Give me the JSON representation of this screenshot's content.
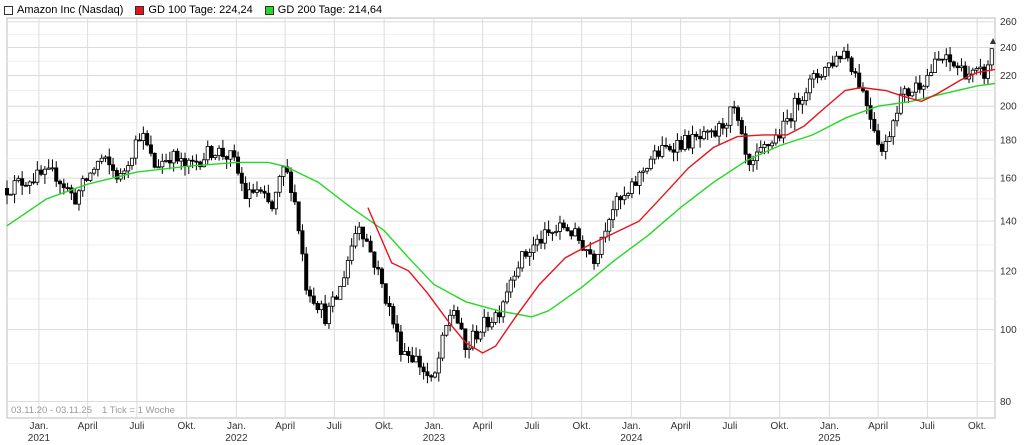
{
  "legend": {
    "main": "Amazon Inc (Nasdaq)",
    "gd100": "GD 100 Tage: 224,24",
    "gd200": "GD 200 Tage: 214,64",
    "main_color": "#ffffff",
    "gd100_color": "#e8121b",
    "gd200_color": "#25d825"
  },
  "footer": {
    "range": "03.11.20 - 03.11.25",
    "tick": "1 Tick = 1 Woche"
  },
  "chart_data": {
    "type": "candlestick",
    "title": "Amazon Inc (Nasdaq)",
    "y_scale": "log",
    "ylim": [
      76,
      263
    ],
    "y_ticks": [
      80,
      100,
      120,
      140,
      160,
      180,
      200,
      220,
      240,
      260
    ],
    "grid": true,
    "legend_position": "top-left",
    "x_ticks": [
      {
        "label": "Jan.",
        "year": "2021",
        "date": "2021-01"
      },
      {
        "label": "April",
        "year": "",
        "date": "2021-04"
      },
      {
        "label": "Juli",
        "year": "",
        "date": "2021-07"
      },
      {
        "label": "Okt.",
        "year": "",
        "date": "2021-10"
      },
      {
        "label": "Jan.",
        "year": "2022",
        "date": "2022-01"
      },
      {
        "label": "April",
        "year": "",
        "date": "2022-04"
      },
      {
        "label": "Juli",
        "year": "",
        "date": "2022-07"
      },
      {
        "label": "Okt.",
        "year": "",
        "date": "2022-10"
      },
      {
        "label": "Jan.",
        "year": "2023",
        "date": "2023-01"
      },
      {
        "label": "April",
        "year": "",
        "date": "2023-04"
      },
      {
        "label": "Juli",
        "year": "",
        "date": "2023-07"
      },
      {
        "label": "Okt.",
        "year": "",
        "date": "2023-10"
      },
      {
        "label": "Jan.",
        "year": "2024",
        "date": "2024-01"
      },
      {
        "label": "April",
        "year": "",
        "date": "2024-04"
      },
      {
        "label": "Juli",
        "year": "",
        "date": "2024-07"
      },
      {
        "label": "Okt.",
        "year": "",
        "date": "2024-10"
      },
      {
        "label": "Jan.",
        "year": "2025",
        "date": "2025-01"
      },
      {
        "label": "April",
        "year": "",
        "date": "2025-04"
      },
      {
        "label": "Juli",
        "year": "",
        "date": "2025-07"
      },
      {
        "label": "Okt.",
        "year": "",
        "date": "2025-10"
      }
    ],
    "price_path": [
      [
        "2020-11-03",
        155
      ],
      [
        "2020-12-15",
        160
      ],
      [
        "2021-02-01",
        162
      ],
      [
        "2021-03-08",
        150
      ],
      [
        "2021-04-25",
        170
      ],
      [
        "2021-06-01",
        160
      ],
      [
        "2021-07-08",
        185
      ],
      [
        "2021-08-02",
        166
      ],
      [
        "2021-09-01",
        172
      ],
      [
        "2021-10-01",
        165
      ],
      [
        "2021-11-20",
        175
      ],
      [
        "2021-12-25",
        170
      ],
      [
        "2022-01-20",
        150
      ],
      [
        "2022-02-05",
        155
      ],
      [
        "2022-03-08",
        145
      ],
      [
        "2022-03-30",
        165
      ],
      [
        "2022-04-15",
        155
      ],
      [
        "2022-05-10",
        115
      ],
      [
        "2022-06-15",
        104
      ],
      [
        "2022-07-10",
        112
      ],
      [
        "2022-08-15",
        140
      ],
      [
        "2022-09-05",
        128
      ],
      [
        "2022-09-30",
        113
      ],
      [
        "2022-10-30",
        95
      ],
      [
        "2022-12-01",
        91
      ],
      [
        "2022-12-30",
        84
      ],
      [
        "2023-01-20",
        98
      ],
      [
        "2023-02-05",
        108
      ],
      [
        "2023-03-01",
        93
      ],
      [
        "2023-03-15",
        98
      ],
      [
        "2023-05-01",
        106
      ],
      [
        "2023-06-01",
        122
      ],
      [
        "2023-07-15",
        132
      ],
      [
        "2023-09-01",
        138
      ],
      [
        "2023-10-25",
        125
      ],
      [
        "2023-11-25",
        146
      ],
      [
        "2023-12-25",
        151
      ],
      [
        "2024-02-05",
        170
      ],
      [
        "2024-03-20",
        178
      ],
      [
        "2024-04-30",
        180
      ],
      [
        "2024-06-01",
        182
      ],
      [
        "2024-07-08",
        198
      ],
      [
        "2024-08-05",
        163
      ],
      [
        "2024-09-01",
        175
      ],
      [
        "2024-10-05",
        185
      ],
      [
        "2024-11-10",
        208
      ],
      [
        "2024-12-20",
        224
      ],
      [
        "2025-01-30",
        238
      ],
      [
        "2025-03-01",
        212
      ],
      [
        "2025-04-10",
        172
      ],
      [
        "2025-05-10",
        205
      ],
      [
        "2025-06-01",
        210
      ],
      [
        "2025-07-01",
        220
      ],
      [
        "2025-07-25",
        232
      ],
      [
        "2025-08-25",
        226
      ],
      [
        "2025-09-25",
        220
      ],
      [
        "2025-10-20",
        222
      ],
      [
        "2025-11-03",
        254
      ]
    ],
    "series": [
      {
        "name": "GD 100 Tage",
        "color": "#e8121b",
        "points": [
          [
            "2022-09-01",
            146
          ],
          [
            "2022-10-15",
            123
          ],
          [
            "2022-11-15",
            120
          ],
          [
            "2022-12-20",
            112
          ],
          [
            "2023-01-30",
            102
          ],
          [
            "2023-03-01",
            96
          ],
          [
            "2023-04-01",
            93
          ],
          [
            "2023-04-25",
            95
          ],
          [
            "2023-06-01",
            104
          ],
          [
            "2023-07-15",
            115
          ],
          [
            "2023-09-01",
            125
          ],
          [
            "2023-10-15",
            130
          ],
          [
            "2023-12-01",
            135
          ],
          [
            "2024-01-15",
            140
          ],
          [
            "2024-03-01",
            152
          ],
          [
            "2024-04-15",
            165
          ],
          [
            "2024-06-01",
            176
          ],
          [
            "2024-07-15",
            182
          ],
          [
            "2024-09-01",
            183
          ],
          [
            "2024-10-15",
            183
          ],
          [
            "2024-11-15",
            188
          ],
          [
            "2024-12-20",
            198
          ],
          [
            "2025-01-30",
            210
          ],
          [
            "2025-03-01",
            212
          ],
          [
            "2025-04-15",
            210
          ],
          [
            "2025-05-20",
            206
          ],
          [
            "2025-06-20",
            203
          ],
          [
            "2025-07-20",
            208
          ],
          [
            "2025-09-01",
            217
          ],
          [
            "2025-10-01",
            222
          ],
          [
            "2025-11-03",
            224.24
          ]
        ]
      },
      {
        "name": "GD 200 Tage",
        "color": "#25d825",
        "points": [
          [
            "2020-11-03",
            138
          ],
          [
            "2021-01-15",
            150
          ],
          [
            "2021-04-01",
            157
          ],
          [
            "2021-07-01",
            163
          ],
          [
            "2021-10-01",
            166
          ],
          [
            "2022-01-01",
            168
          ],
          [
            "2022-03-01",
            168
          ],
          [
            "2022-04-01",
            166
          ],
          [
            "2022-06-01",
            158
          ],
          [
            "2022-08-01",
            146
          ],
          [
            "2022-10-01",
            136
          ],
          [
            "2022-11-15",
            125
          ],
          [
            "2023-01-01",
            115
          ],
          [
            "2023-03-01",
            109
          ],
          [
            "2023-05-01",
            106
          ],
          [
            "2023-07-01",
            104
          ],
          [
            "2023-08-01",
            106
          ],
          [
            "2023-10-01",
            114
          ],
          [
            "2023-12-01",
            124
          ],
          [
            "2024-02-01",
            134
          ],
          [
            "2024-04-01",
            146
          ],
          [
            "2024-06-01",
            158
          ],
          [
            "2024-08-01",
            169
          ],
          [
            "2024-10-01",
            177
          ],
          [
            "2024-12-01",
            183
          ],
          [
            "2025-02-01",
            193
          ],
          [
            "2025-04-01",
            200
          ],
          [
            "2025-06-01",
            203
          ],
          [
            "2025-08-01",
            208
          ],
          [
            "2025-10-01",
            213
          ],
          [
            "2025-11-03",
            214.64
          ]
        ]
      }
    ]
  }
}
